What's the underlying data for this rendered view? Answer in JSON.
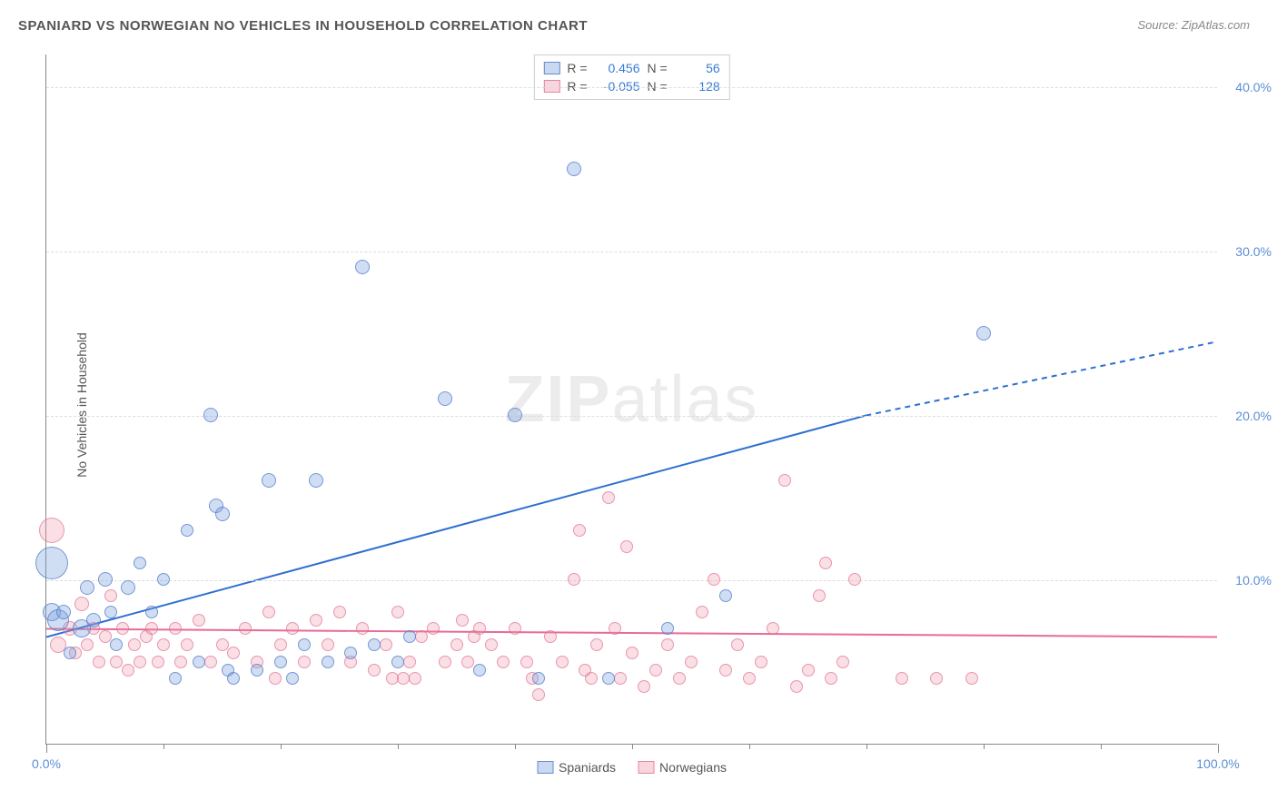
{
  "title": "SPANIARD VS NORWEGIAN NO VEHICLES IN HOUSEHOLD CORRELATION CHART",
  "source": "Source: ZipAtlas.com",
  "ylabel": "No Vehicles in Household",
  "watermark_bold": "ZIP",
  "watermark_light": "atlas",
  "chart": {
    "type": "scatter",
    "xlim": [
      0,
      100
    ],
    "ylim": [
      0,
      42
    ],
    "x_ticks_major": [
      0,
      100
    ],
    "x_tick_labels": [
      "0.0%",
      "100.0%"
    ],
    "x_ticks_minor": [
      10,
      20,
      30,
      40,
      50,
      60,
      70,
      80,
      90
    ],
    "y_ticks": [
      10,
      20,
      30,
      40
    ],
    "y_tick_labels": [
      "10.0%",
      "20.0%",
      "30.0%",
      "40.0%"
    ],
    "grid_color": "#dddddd",
    "grid_dash": true,
    "axis_color": "#888888",
    "background_color": "#ffffff",
    "tick_label_color": "#5b8dd6",
    "label_color": "#555555",
    "title_fontsize": 15,
    "label_fontsize": 14,
    "ylabel_fontsize": 14
  },
  "series": {
    "spaniards": {
      "label": "Spaniards",
      "fill_color": "rgba(120,160,220,0.35)",
      "stroke_color": "rgba(80,120,200,0.7)",
      "points": [
        {
          "x": 0.5,
          "y": 11,
          "r": 18
        },
        {
          "x": 0.5,
          "y": 8,
          "r": 10
        },
        {
          "x": 1,
          "y": 7.5,
          "r": 12
        },
        {
          "x": 1.5,
          "y": 8,
          "r": 8
        },
        {
          "x": 2,
          "y": 5.5,
          "r": 7
        },
        {
          "x": 3,
          "y": 7,
          "r": 10
        },
        {
          "x": 3.5,
          "y": 9.5,
          "r": 8
        },
        {
          "x": 4,
          "y": 7.5,
          "r": 8
        },
        {
          "x": 5,
          "y": 10,
          "r": 8
        },
        {
          "x": 5.5,
          "y": 8,
          "r": 7
        },
        {
          "x": 6,
          "y": 6,
          "r": 7
        },
        {
          "x": 7,
          "y": 9.5,
          "r": 8
        },
        {
          "x": 8,
          "y": 11,
          "r": 7
        },
        {
          "x": 9,
          "y": 8,
          "r": 7
        },
        {
          "x": 10,
          "y": 10,
          "r": 7
        },
        {
          "x": 11,
          "y": 4,
          "r": 7
        },
        {
          "x": 12,
          "y": 13,
          "r": 7
        },
        {
          "x": 13,
          "y": 5,
          "r": 7
        },
        {
          "x": 14,
          "y": 20,
          "r": 8
        },
        {
          "x": 14.5,
          "y": 14.5,
          "r": 8
        },
        {
          "x": 15,
          "y": 14,
          "r": 8
        },
        {
          "x": 15.5,
          "y": 4.5,
          "r": 7
        },
        {
          "x": 16,
          "y": 4,
          "r": 7
        },
        {
          "x": 18,
          "y": 4.5,
          "r": 7
        },
        {
          "x": 19,
          "y": 16,
          "r": 8
        },
        {
          "x": 20,
          "y": 5,
          "r": 7
        },
        {
          "x": 21,
          "y": 4,
          "r": 7
        },
        {
          "x": 22,
          "y": 6,
          "r": 7
        },
        {
          "x": 23,
          "y": 16,
          "r": 8
        },
        {
          "x": 24,
          "y": 5,
          "r": 7
        },
        {
          "x": 26,
          "y": 5.5,
          "r": 7
        },
        {
          "x": 27,
          "y": 29,
          "r": 8
        },
        {
          "x": 28,
          "y": 6,
          "r": 7
        },
        {
          "x": 30,
          "y": 5,
          "r": 7
        },
        {
          "x": 31,
          "y": 6.5,
          "r": 7
        },
        {
          "x": 34,
          "y": 21,
          "r": 8
        },
        {
          "x": 37,
          "y": 4.5,
          "r": 7
        },
        {
          "x": 40,
          "y": 20,
          "r": 8
        },
        {
          "x": 42,
          "y": 4,
          "r": 7
        },
        {
          "x": 45,
          "y": 35,
          "r": 8
        },
        {
          "x": 48,
          "y": 4,
          "r": 7
        },
        {
          "x": 53,
          "y": 7,
          "r": 7
        },
        {
          "x": 58,
          "y": 9,
          "r": 7
        },
        {
          "x": 80,
          "y": 25,
          "r": 8
        }
      ]
    },
    "norwegians": {
      "label": "Norwegians",
      "fill_color": "rgba(240,150,170,0.30)",
      "stroke_color": "rgba(220,100,140,0.6)",
      "points": [
        {
          "x": 0.5,
          "y": 13,
          "r": 14
        },
        {
          "x": 1,
          "y": 6,
          "r": 9
        },
        {
          "x": 2,
          "y": 7,
          "r": 8
        },
        {
          "x": 2.5,
          "y": 5.5,
          "r": 7
        },
        {
          "x": 3,
          "y": 8.5,
          "r": 8
        },
        {
          "x": 3.5,
          "y": 6,
          "r": 7
        },
        {
          "x": 4,
          "y": 7,
          "r": 7
        },
        {
          "x": 4.5,
          "y": 5,
          "r": 7
        },
        {
          "x": 5,
          "y": 6.5,
          "r": 7
        },
        {
          "x": 5.5,
          "y": 9,
          "r": 7
        },
        {
          "x": 6,
          "y": 5,
          "r": 7
        },
        {
          "x": 6.5,
          "y": 7,
          "r": 7
        },
        {
          "x": 7,
          "y": 4.5,
          "r": 7
        },
        {
          "x": 7.5,
          "y": 6,
          "r": 7
        },
        {
          "x": 8,
          "y": 5,
          "r": 7
        },
        {
          "x": 8.5,
          "y": 6.5,
          "r": 7
        },
        {
          "x": 9,
          "y": 7,
          "r": 7
        },
        {
          "x": 9.5,
          "y": 5,
          "r": 7
        },
        {
          "x": 10,
          "y": 6,
          "r": 7
        },
        {
          "x": 11,
          "y": 7,
          "r": 7
        },
        {
          "x": 11.5,
          "y": 5,
          "r": 7
        },
        {
          "x": 12,
          "y": 6,
          "r": 7
        },
        {
          "x": 13,
          "y": 7.5,
          "r": 7
        },
        {
          "x": 14,
          "y": 5,
          "r": 7
        },
        {
          "x": 15,
          "y": 6,
          "r": 7
        },
        {
          "x": 16,
          "y": 5.5,
          "r": 7
        },
        {
          "x": 17,
          "y": 7,
          "r": 7
        },
        {
          "x": 18,
          "y": 5,
          "r": 7
        },
        {
          "x": 19,
          "y": 8,
          "r": 7
        },
        {
          "x": 19.5,
          "y": 4,
          "r": 7
        },
        {
          "x": 20,
          "y": 6,
          "r": 7
        },
        {
          "x": 21,
          "y": 7,
          "r": 7
        },
        {
          "x": 22,
          "y": 5,
          "r": 7
        },
        {
          "x": 23,
          "y": 7.5,
          "r": 7
        },
        {
          "x": 24,
          "y": 6,
          "r": 7
        },
        {
          "x": 25,
          "y": 8,
          "r": 7
        },
        {
          "x": 26,
          "y": 5,
          "r": 7
        },
        {
          "x": 27,
          "y": 7,
          "r": 7
        },
        {
          "x": 28,
          "y": 4.5,
          "r": 7
        },
        {
          "x": 29,
          "y": 6,
          "r": 7
        },
        {
          "x": 29.5,
          "y": 4,
          "r": 7
        },
        {
          "x": 30,
          "y": 8,
          "r": 7
        },
        {
          "x": 30.5,
          "y": 4,
          "r": 7
        },
        {
          "x": 31,
          "y": 5,
          "r": 7
        },
        {
          "x": 31.5,
          "y": 4,
          "r": 7
        },
        {
          "x": 32,
          "y": 6.5,
          "r": 7
        },
        {
          "x": 33,
          "y": 7,
          "r": 7
        },
        {
          "x": 34,
          "y": 5,
          "r": 7
        },
        {
          "x": 35,
          "y": 6,
          "r": 7
        },
        {
          "x": 35.5,
          "y": 7.5,
          "r": 7
        },
        {
          "x": 36,
          "y": 5,
          "r": 7
        },
        {
          "x": 36.5,
          "y": 6.5,
          "r": 7
        },
        {
          "x": 37,
          "y": 7,
          "r": 7
        },
        {
          "x": 38,
          "y": 6,
          "r": 7
        },
        {
          "x": 39,
          "y": 5,
          "r": 7
        },
        {
          "x": 40,
          "y": 7,
          "r": 7
        },
        {
          "x": 41,
          "y": 5,
          "r": 7
        },
        {
          "x": 41.5,
          "y": 4,
          "r": 7
        },
        {
          "x": 42,
          "y": 3,
          "r": 7
        },
        {
          "x": 43,
          "y": 6.5,
          "r": 7
        },
        {
          "x": 44,
          "y": 5,
          "r": 7
        },
        {
          "x": 45,
          "y": 10,
          "r": 7
        },
        {
          "x": 45.5,
          "y": 13,
          "r": 7
        },
        {
          "x": 46,
          "y": 4.5,
          "r": 7
        },
        {
          "x": 46.5,
          "y": 4,
          "r": 7
        },
        {
          "x": 47,
          "y": 6,
          "r": 7
        },
        {
          "x": 48,
          "y": 15,
          "r": 7
        },
        {
          "x": 48.5,
          "y": 7,
          "r": 7
        },
        {
          "x": 49,
          "y": 4,
          "r": 7
        },
        {
          "x": 49.5,
          "y": 12,
          "r": 7
        },
        {
          "x": 50,
          "y": 5.5,
          "r": 7
        },
        {
          "x": 51,
          "y": 3.5,
          "r": 7
        },
        {
          "x": 52,
          "y": 4.5,
          "r": 7
        },
        {
          "x": 53,
          "y": 6,
          "r": 7
        },
        {
          "x": 54,
          "y": 4,
          "r": 7
        },
        {
          "x": 55,
          "y": 5,
          "r": 7
        },
        {
          "x": 56,
          "y": 8,
          "r": 7
        },
        {
          "x": 57,
          "y": 10,
          "r": 7
        },
        {
          "x": 58,
          "y": 4.5,
          "r": 7
        },
        {
          "x": 59,
          "y": 6,
          "r": 7
        },
        {
          "x": 60,
          "y": 4,
          "r": 7
        },
        {
          "x": 61,
          "y": 5,
          "r": 7
        },
        {
          "x": 62,
          "y": 7,
          "r": 7
        },
        {
          "x": 63,
          "y": 16,
          "r": 7
        },
        {
          "x": 64,
          "y": 3.5,
          "r": 7
        },
        {
          "x": 65,
          "y": 4.5,
          "r": 7
        },
        {
          "x": 66,
          "y": 9,
          "r": 7
        },
        {
          "x": 66.5,
          "y": 11,
          "r": 7
        },
        {
          "x": 67,
          "y": 4,
          "r": 7
        },
        {
          "x": 68,
          "y": 5,
          "r": 7
        },
        {
          "x": 69,
          "y": 10,
          "r": 7
        },
        {
          "x": 73,
          "y": 4,
          "r": 7
        },
        {
          "x": 76,
          "y": 4,
          "r": 7
        },
        {
          "x": 79,
          "y": 4,
          "r": 7
        }
      ]
    }
  },
  "trend_lines": {
    "spaniards": {
      "color": "#2f6fd0",
      "width": 2,
      "x1": 0,
      "y1": 6.5,
      "x_solid_end": 70,
      "y_solid_end": 20,
      "x2": 100,
      "y2": 24.5,
      "dash_after_solid": true
    },
    "norwegians": {
      "color": "#e86a9a",
      "width": 2,
      "x1": 0,
      "y1": 7,
      "x2": 100,
      "y2": 6.5,
      "dash_after_solid": false
    }
  },
  "stats": {
    "spaniards": {
      "R": "0.456",
      "N": "56"
    },
    "norwegians": {
      "R": "-0.055",
      "N": "128"
    }
  },
  "stat_labels": {
    "R": "R =",
    "N": "N ="
  }
}
